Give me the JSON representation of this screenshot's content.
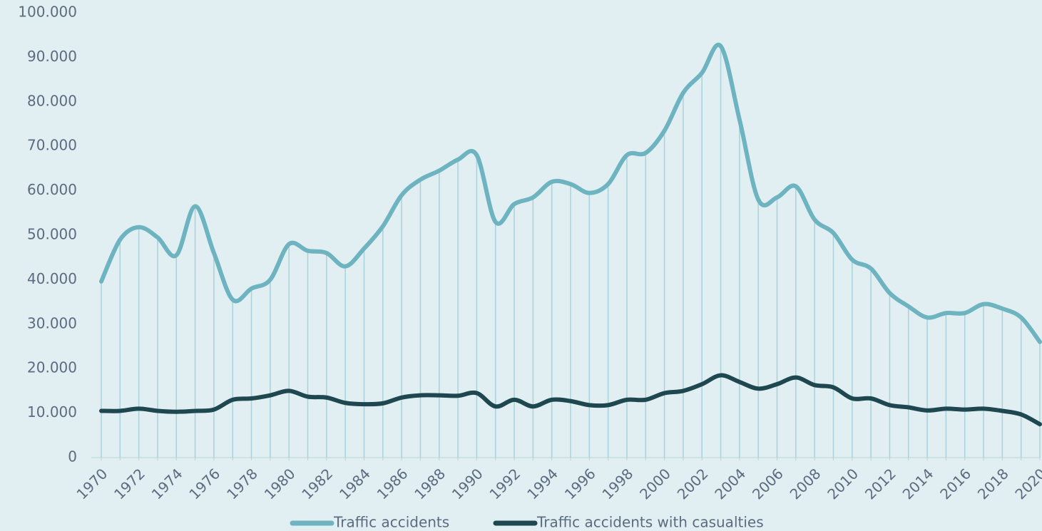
{
  "chart_data": {
    "type": "line",
    "categories": [
      "1970",
      null,
      "1972",
      null,
      "1974",
      null,
      "1976",
      null,
      "1978",
      null,
      "1980",
      null,
      "1982",
      null,
      "1984",
      null,
      "1986",
      null,
      "1988",
      null,
      "1990",
      null,
      "1992",
      null,
      "1994",
      null,
      "1996",
      null,
      "1998",
      null,
      "2000",
      null,
      "2002",
      null,
      "2004",
      null,
      "2006",
      null,
      "2008",
      null,
      "2010",
      null,
      "2012",
      null,
      "2014",
      null,
      "2016",
      null,
      "2018",
      null,
      "2020"
    ],
    "series": [
      {
        "name": "Traffic accidents",
        "color": "#6db3c0",
        "values": [
          39600,
          49000,
          51800,
          49500,
          45500,
          56500,
          46000,
          35500,
          38000,
          40000,
          48000,
          46500,
          46000,
          43000,
          47000,
          52000,
          59000,
          62500,
          64500,
          67000,
          68000,
          53000,
          57000,
          58500,
          62000,
          61500,
          59500,
          61500,
          68000,
          68500,
          73500,
          82000,
          86500,
          92500,
          76000,
          58000,
          58500,
          61000,
          53500,
          50500,
          44500,
          42500,
          37000,
          34000,
          31500,
          32500,
          32500,
          34500,
          33500,
          31500,
          26000
        ]
      },
      {
        "name": "Traffic accidents with casualties",
        "color": "#1e474f",
        "values": [
          10500,
          10500,
          11000,
          10500,
          10300,
          10500,
          10800,
          13000,
          13300,
          14000,
          15000,
          13700,
          13500,
          12300,
          12000,
          12200,
          13500,
          14000,
          14000,
          13900,
          14500,
          11500,
          13000,
          11500,
          13000,
          12700,
          11800,
          11800,
          13000,
          13000,
          14500,
          15000,
          16500,
          18500,
          17000,
          15500,
          16500,
          18000,
          16300,
          15800,
          13300,
          13300,
          11800,
          11300,
          10600,
          11000,
          10800,
          11000,
          10500,
          9700,
          7500
        ]
      }
    ],
    "ylim": [
      0,
      100000
    ],
    "yticks": [
      0,
      {
        "value": 10000,
        "label": "10.000"
      },
      {
        "value": 20000,
        "label": "20.000"
      },
      {
        "value": 30000,
        "label": "30.000"
      },
      {
        "value": 40000,
        "label": "40.000"
      },
      {
        "value": 50000,
        "label": "50.000"
      },
      {
        "value": 60000,
        "label": "60.000"
      },
      {
        "value": 70000,
        "label": "70.000"
      },
      {
        "value": 80000,
        "label": "80.000"
      },
      {
        "value": 90000,
        "label": "90.000"
      },
      {
        "value": 100000,
        "label": "100.000"
      }
    ],
    "drop_lines": true,
    "legend": "bottom"
  }
}
